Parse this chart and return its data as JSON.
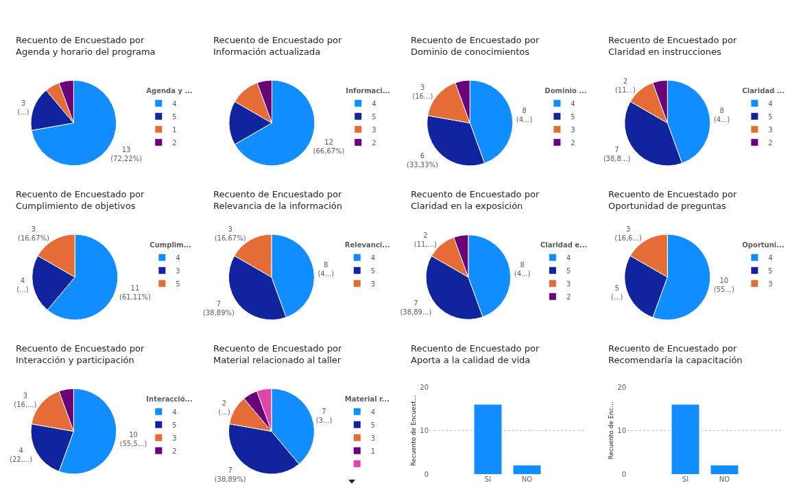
{
  "chart_data": [
    {
      "type": "pie",
      "title": "Recuento de Encuestado por Agenda y horario del programa",
      "legend_title": "Agenda y ...",
      "legend": "right",
      "categories": [
        "4",
        "5",
        "1",
        "2"
      ],
      "values": [
        13,
        3,
        1,
        1
      ],
      "colors": [
        "#118dff",
        "#12239e",
        "#e66c37",
        "#6b007b"
      ],
      "value_labels": [
        "13 (72,22%)",
        "3 (...)",
        null,
        null
      ]
    },
    {
      "type": "pie",
      "title": "Recuento de Encuestado por Información actualizada",
      "legend_title": "Informaci...",
      "legend": "right",
      "categories": [
        "4",
        "5",
        "3",
        "2"
      ],
      "values": [
        12,
        3,
        2,
        1
      ],
      "colors": [
        "#118dff",
        "#12239e",
        "#e66c37",
        "#6b007b"
      ],
      "value_labels": [
        "12 (66,67%)",
        null,
        null,
        null
      ]
    },
    {
      "type": "pie",
      "title": "Recuento de Encuestado por Dominio de conocimientos",
      "legend_title": "Dominio ...",
      "legend": "right",
      "categories": [
        "4",
        "5",
        "3",
        "2"
      ],
      "values": [
        8,
        6,
        3,
        1
      ],
      "colors": [
        "#118dff",
        "#12239e",
        "#e66c37",
        "#6b007b"
      ],
      "value_labels": [
        "8 (4...)",
        "6 (33,33%)",
        "3 (16...)",
        null
      ]
    },
    {
      "type": "pie",
      "title": "Recuento de Encuestado por Claridad en instrucciones",
      "legend_title": "Claridad ...",
      "legend": "right",
      "categories": [
        "4",
        "5",
        "3",
        "2"
      ],
      "values": [
        8,
        7,
        2,
        1
      ],
      "colors": [
        "#118dff",
        "#12239e",
        "#e66c37",
        "#6b007b"
      ],
      "value_labels": [
        "8 (4...)",
        "7 (38,8...)",
        "2 (11...)",
        null
      ]
    },
    {
      "type": "pie",
      "title": "Recuento de Encuestado por Cumplimiento de objetivos",
      "legend_title": "Cumplim...",
      "legend": "right",
      "categories": [
        "4",
        "3",
        "5"
      ],
      "values": [
        11,
        4,
        3
      ],
      "colors": [
        "#118dff",
        "#12239e",
        "#e66c37"
      ],
      "value_labels": [
        "11 (61,11%)",
        "4 (...)",
        "3 (16,67%)"
      ]
    },
    {
      "type": "pie",
      "title": "Recuento de Encuestado por Relevancia de la información",
      "legend_title": "Relevanci...",
      "legend": "right",
      "categories": [
        "4",
        "5",
        "3"
      ],
      "values": [
        8,
        7,
        3
      ],
      "colors": [
        "#118dff",
        "#12239e",
        "#e66c37"
      ],
      "value_labels": [
        "8 (4...)",
        "7 (38,89%)",
        "3 (16,67%)"
      ]
    },
    {
      "type": "pie",
      "title": "Recuento de Encuestado por Claridad en la exposición",
      "legend_title": "Claridad e...",
      "legend": "right",
      "categories": [
        "4",
        "5",
        "3",
        "2"
      ],
      "values": [
        8,
        7,
        2,
        1
      ],
      "colors": [
        "#118dff",
        "#12239e",
        "#e66c37",
        "#6b007b"
      ],
      "value_labels": [
        "8 (4...)",
        "7 (38,89...)",
        "2 (11,...)",
        null
      ]
    },
    {
      "type": "pie",
      "title": "Recuento de Encuestado por Oportunidad de preguntas",
      "legend_title": "Oportuni...",
      "legend": "right",
      "categories": [
        "4",
        "5",
        "3"
      ],
      "values": [
        10,
        5,
        3
      ],
      "colors": [
        "#118dff",
        "#12239e",
        "#e66c37"
      ],
      "value_labels": [
        "10 (55...)",
        "5 (...)",
        "3 (16,6...)"
      ]
    },
    {
      "type": "pie",
      "title": "Recuento de Encuestado por Interacción y participación",
      "legend_title": "Interacció...",
      "legend": "right",
      "categories": [
        "4",
        "5",
        "3",
        "2"
      ],
      "values": [
        10,
        4,
        3,
        1
      ],
      "colors": [
        "#118dff",
        "#12239e",
        "#e66c37",
        "#6b007b"
      ],
      "value_labels": [
        "10 (55,5...)",
        "4 (22,...)",
        "3 (16,...)",
        null
      ]
    },
    {
      "type": "pie",
      "title": "Recuento de Encuestado por Material relacionado al taller",
      "legend_title": "Material r...",
      "legend": "right",
      "categories": [
        "4",
        "5",
        "3",
        "1",
        null
      ],
      "values": [
        7,
        7,
        2,
        1,
        1
      ],
      "colors": [
        "#118dff",
        "#12239e",
        "#e66c37",
        "#6b007b",
        "#e044a7"
      ],
      "value_labels": [
        "7 (3...)",
        "7 (38,89%)",
        "2 (...)",
        null,
        null
      ]
    },
    {
      "type": "bar",
      "title": "Recuento de Encuestado por Aporta a la calidad de vida",
      "ylabel": "Recuento de Encuest...",
      "categories": [
        "SI",
        "NO"
      ],
      "values": [
        16,
        2
      ],
      "color": "#118dff",
      "ylim": [
        0,
        20
      ],
      "yticks": [
        0,
        10,
        20
      ],
      "grid": "y"
    },
    {
      "type": "bar",
      "title": "Recuento de Encuestado por Recomendaría la capacitación",
      "ylabel": "Recuento de Enc...",
      "categories": [
        "SI",
        "NO"
      ],
      "values": [
        16,
        2
      ],
      "color": "#118dff",
      "ylim": [
        0,
        20
      ],
      "yticks": [
        0,
        10,
        20
      ],
      "grid": "y"
    }
  ]
}
